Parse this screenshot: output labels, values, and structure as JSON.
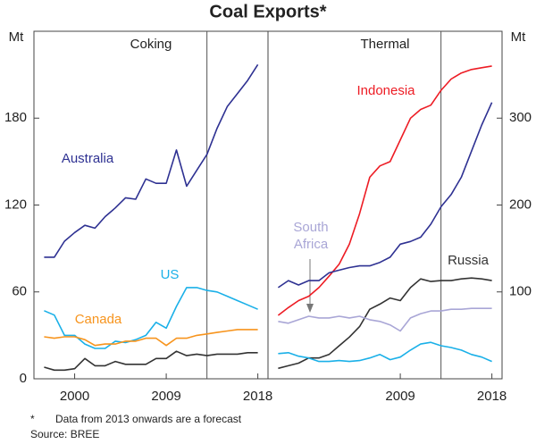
{
  "title": "Coal Exports*",
  "footnote_marker": "*",
  "footnote": "Data from 2013 onwards are a forecast",
  "source": "Source: BREE",
  "chart_data": [
    {
      "type": "line",
      "title": "Coking",
      "y_label": "Mt",
      "x": [
        1997,
        1998,
        1999,
        2000,
        2001,
        2002,
        2003,
        2004,
        2005,
        2006,
        2007,
        2008,
        2009,
        2010,
        2011,
        2012,
        2013,
        2014,
        2015,
        2016,
        2017,
        2018
      ],
      "xlim": [
        1996,
        2019
      ],
      "xticks": [
        2000,
        2009,
        2018
      ],
      "ylim": [
        0,
        240
      ],
      "yticks": [
        0,
        60,
        120,
        180
      ],
      "forecast_from": 2013,
      "series": [
        {
          "name": "Australia",
          "color": "#2e3192",
          "values": [
            84,
            84,
            95,
            101,
            106,
            104,
            112,
            118,
            125,
            124,
            138,
            135,
            135,
            158,
            133,
            144,
            155,
            173,
            188,
            197,
            206,
            217
          ]
        },
        {
          "name": "US",
          "color": "#1ab0e8",
          "values": [
            47,
            44,
            30,
            30,
            24,
            21,
            21,
            26,
            25,
            27,
            30,
            39,
            35,
            50,
            63,
            63,
            61,
            60,
            57,
            54,
            51,
            48
          ]
        },
        {
          "name": "Canada",
          "color": "#f7941d",
          "values": [
            29,
            28,
            29,
            29,
            27,
            23,
            24,
            24,
            26,
            26,
            28,
            28,
            23,
            28,
            28,
            30,
            31,
            32,
            33,
            34,
            34,
            34
          ]
        },
        {
          "color": "#333333",
          "values": [
            8,
            6,
            6,
            7,
            14,
            9,
            9,
            12,
            10,
            10,
            10,
            14,
            14,
            19,
            16,
            17,
            16,
            17,
            17,
            17,
            18,
            18
          ]
        }
      ]
    },
    {
      "type": "line",
      "title": "Thermal",
      "y_label": "Mt",
      "x": [
        1997,
        1998,
        1999,
        2000,
        2001,
        2002,
        2003,
        2004,
        2005,
        2006,
        2007,
        2008,
        2009,
        2010,
        2011,
        2012,
        2013,
        2014,
        2015,
        2016,
        2017,
        2018
      ],
      "xlim": [
        1996,
        2019
      ],
      "xticks": [
        2009,
        2018
      ],
      "ylim": [
        0,
        400
      ],
      "yticks": [
        100,
        200,
        300
      ],
      "forecast_from": 2013,
      "series": [
        {
          "name": "Indonesia",
          "color": "#ed1c24",
          "values": [
            73,
            82,
            90,
            95,
            105,
            118,
            132,
            155,
            190,
            232,
            245,
            250,
            275,
            300,
            310,
            315,
            332,
            345,
            352,
            356,
            358,
            360
          ]
        },
        {
          "name": "Australia",
          "color": "#2e3192",
          "values": [
            105,
            113,
            108,
            113,
            113,
            122,
            125,
            128,
            130,
            130,
            134,
            140,
            155,
            158,
            163,
            178,
            198,
            212,
            232,
            262,
            292,
            318
          ]
        },
        {
          "name": "Russia",
          "color": "#333333",
          "values": [
            12,
            15,
            18,
            24,
            24,
            28,
            38,
            48,
            60,
            80,
            86,
            93,
            90,
            105,
            115,
            112,
            113,
            113,
            115,
            116,
            115,
            113
          ]
        },
        {
          "name": "South Africa",
          "color": "#a9a6d6",
          "values": [
            66,
            64,
            68,
            72,
            70,
            70,
            72,
            70,
            72,
            68,
            66,
            62,
            55,
            70,
            75,
            78,
            78,
            80,
            80,
            81,
            81,
            81
          ]
        },
        {
          "name": "US",
          "color": "#1ab0e8",
          "values": [
            29,
            30,
            26,
            24,
            20,
            20,
            21,
            20,
            21,
            24,
            28,
            22,
            25,
            33,
            40,
            42,
            38,
            36,
            33,
            28,
            25,
            20
          ]
        }
      ]
    }
  ]
}
